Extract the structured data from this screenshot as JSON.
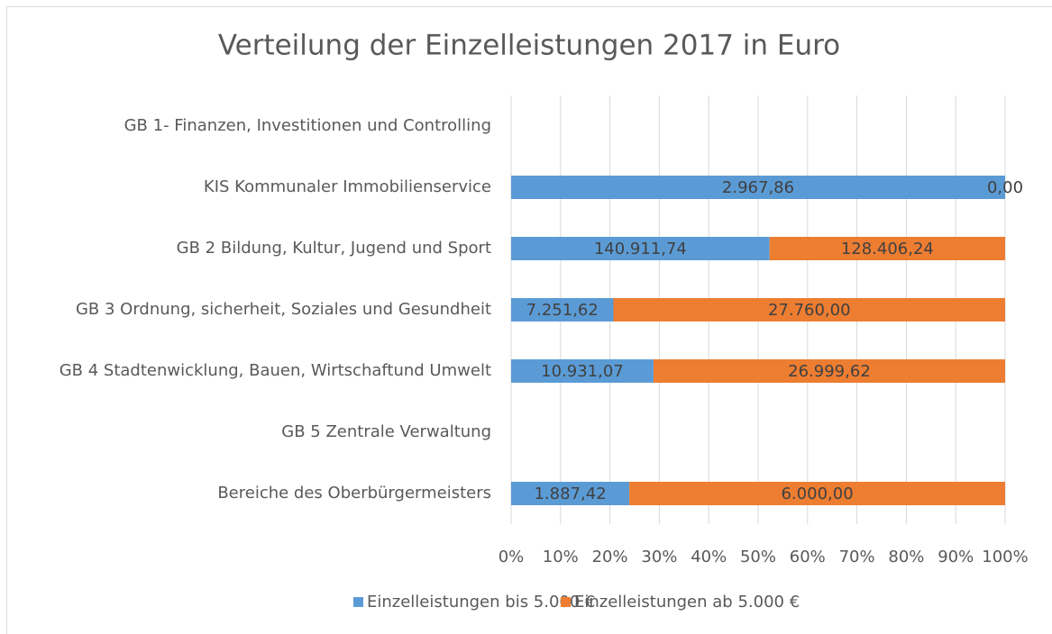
{
  "chart_data": {
    "type": "bar",
    "stacked": "percent",
    "orientation": "horizontal",
    "title": "Verteilung der Einzelleistungen 2017 in Euro",
    "categories": [
      "GB 1- Finanzen, Investitionen und Controlling",
      "KIS Kommunaler Immobilienservice",
      "GB 2 Bildung, Kultur, Jugend und Sport",
      "GB 3 Ordnung, sicherheit, Soziales und Gesundheit",
      "GB 4 Stadtenwicklung, Bauen, Wirtschaftund Umwelt",
      "GB 5 Zentrale Verwaltung",
      "Bereiche des Oberbürgermeisters"
    ],
    "series": [
      {
        "name": "Einzelleistungen bis 5.000 €",
        "color": "#5b9bd5",
        "values": [
          null,
          2967.86,
          140911.74,
          7251.62,
          10931.07,
          null,
          1887.42
        ],
        "value_labels": [
          null,
          "2.967,86",
          "140.911,74",
          "7.251,62",
          "10.931,07",
          null,
          "1.887,42"
        ]
      },
      {
        "name": "Einzelleistungen ab 5.000 €",
        "color": "#ed7d31",
        "values": [
          null,
          0,
          128406.24,
          27760,
          26999.62,
          null,
          6000
        ],
        "value_labels": [
          null,
          "0,00",
          "128.406,24",
          "27.760,00",
          "26.999,62",
          null,
          "6.000,00"
        ]
      }
    ],
    "xlim": [
      0,
      100
    ],
    "xticks": [
      {
        "value": 0,
        "label": "0%"
      },
      {
        "value": 10,
        "label": "10%"
      },
      {
        "value": 20,
        "label": "20%"
      },
      {
        "value": 30,
        "label": "30%"
      },
      {
        "value": 40,
        "label": "40%"
      },
      {
        "value": 50,
        "label": "50%"
      },
      {
        "value": 60,
        "label": "60%"
      },
      {
        "value": 70,
        "label": "70%"
      },
      {
        "value": 80,
        "label": "80%"
      },
      {
        "value": 90,
        "label": "90%"
      },
      {
        "value": 100,
        "label": "100%"
      }
    ],
    "grid": true,
    "legend": "bottom"
  }
}
